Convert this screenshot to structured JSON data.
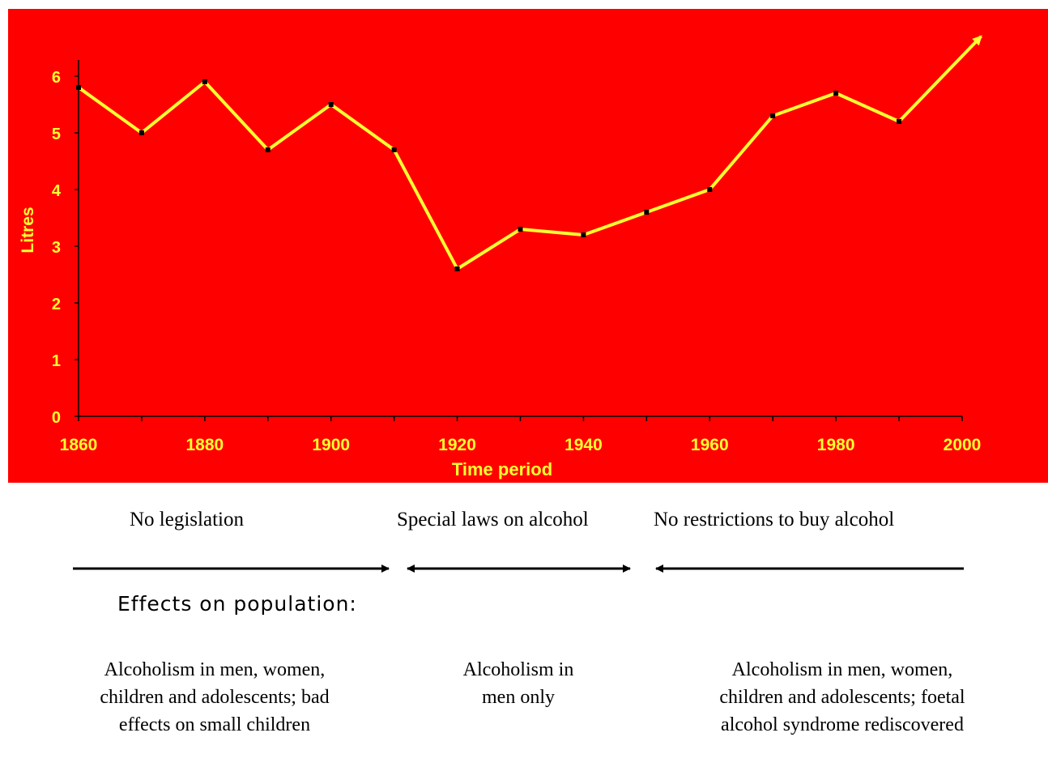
{
  "chart_data": {
    "type": "line",
    "xlabel": "Time period",
    "ylabel": "Litres",
    "x": [
      1860,
      1870,
      1880,
      1890,
      1900,
      1910,
      1920,
      1930,
      1940,
      1950,
      1960,
      1970,
      1980,
      1990,
      2003
    ],
    "values": [
      5.8,
      5.0,
      5.9,
      4.7,
      5.5,
      4.7,
      2.6,
      3.3,
      3.2,
      3.6,
      4.0,
      5.3,
      5.7,
      5.2,
      6.7
    ],
    "xlim": [
      1860,
      2000
    ],
    "ylim": [
      0,
      6
    ],
    "xticks": [
      1860,
      1880,
      1900,
      1920,
      1940,
      1960,
      1980,
      2000
    ],
    "xticks_minor": [
      1860,
      1870,
      1880,
      1890,
      1900,
      1910,
      1920,
      1930,
      1940,
      1950,
      1960,
      1970,
      1980,
      1990,
      2000
    ],
    "yticks": [
      0,
      1,
      2,
      3,
      4,
      5,
      6
    ],
    "grid": false,
    "line_color": "#ffff33",
    "background": "#ff0000",
    "end_arrow": true
  },
  "periods": [
    {
      "label": "No legislation"
    },
    {
      "label": "Special laws on alcohol"
    },
    {
      "label": "No restrictions to buy alcohol"
    }
  ],
  "effects_heading": "Effects on population:",
  "effects": [
    {
      "text": "Alcoholism in men, women, children and adolescents; bad effects on small children"
    },
    {
      "text": "Alcoholism in men only"
    },
    {
      "text": "Alcoholism in men, women, children and adolescents; foetal alcohol syndrome rediscovered"
    }
  ]
}
